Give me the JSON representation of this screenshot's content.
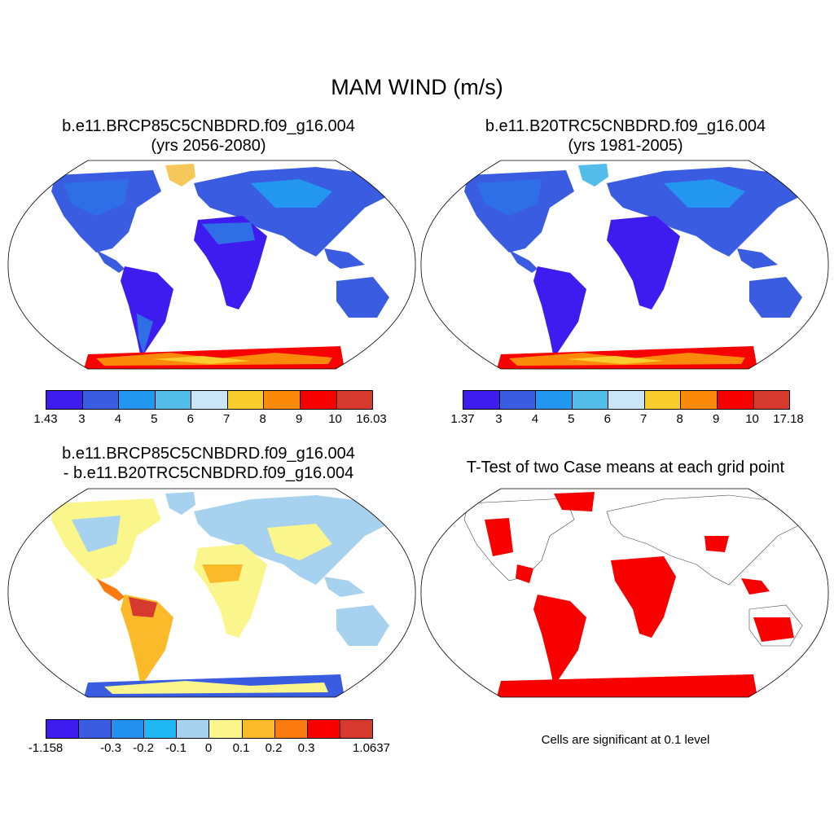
{
  "main_title": "MAM WIND (m/s)",
  "panels": [
    {
      "id": "future",
      "title_line1": "b.e11.BRCP85C5CNBDRD.f09_g16.004",
      "title_line2": "(yrs 2056-2080)",
      "legend": {
        "colors": [
          "#3e1cf0",
          "#3a5ce0",
          "#2397f0",
          "#52bde8",
          "#c8e6f8",
          "#f9cd2d",
          "#fb8a0a",
          "#f80000",
          "#d63a2e"
        ],
        "ticks": [
          "1.43",
          "3",
          "4",
          "5",
          "6",
          "7",
          "8",
          "9",
          "10",
          "16.03"
        ]
      }
    },
    {
      "id": "historical",
      "title_line1": "b.e11.B20TRC5CNBDRD.f09_g16.004",
      "title_line2": "(yrs 1981-2005)",
      "legend": {
        "colors": [
          "#3e1cf0",
          "#3a5ce0",
          "#2397f0",
          "#52bde8",
          "#c8e6f8",
          "#f9cd2d",
          "#fb8a0a",
          "#f80000",
          "#d63a2e"
        ],
        "ticks": [
          "1.37",
          "3",
          "4",
          "5",
          "6",
          "7",
          "8",
          "9",
          "10",
          "17.18"
        ]
      }
    },
    {
      "id": "difference",
      "title_line1": "b.e11.BRCP85C5CNBDRD.f09_g16.004",
      "title_line2": "- b.e11.B20TRC5CNBDRD.f09_g16.004",
      "legend": {
        "colors": [
          "#3e1cf0",
          "#3a5ce0",
          "#2391f0",
          "#1fb8f5",
          "#a6d2f0",
          "#fbf68c",
          "#fbba2a",
          "#fb7a10",
          "#f80000",
          "#d63a2e"
        ],
        "ticks": [
          "-1.158",
          "",
          "-0.3",
          "-0.2",
          "-0.1",
          "0",
          "0.1",
          "0.2",
          "0.3",
          "",
          "1.0637"
        ]
      }
    },
    {
      "id": "ttest",
      "title_line1": "T-Test of two Case means at each grid point",
      "note": "Cells are significant at 0.1 level"
    }
  ]
}
